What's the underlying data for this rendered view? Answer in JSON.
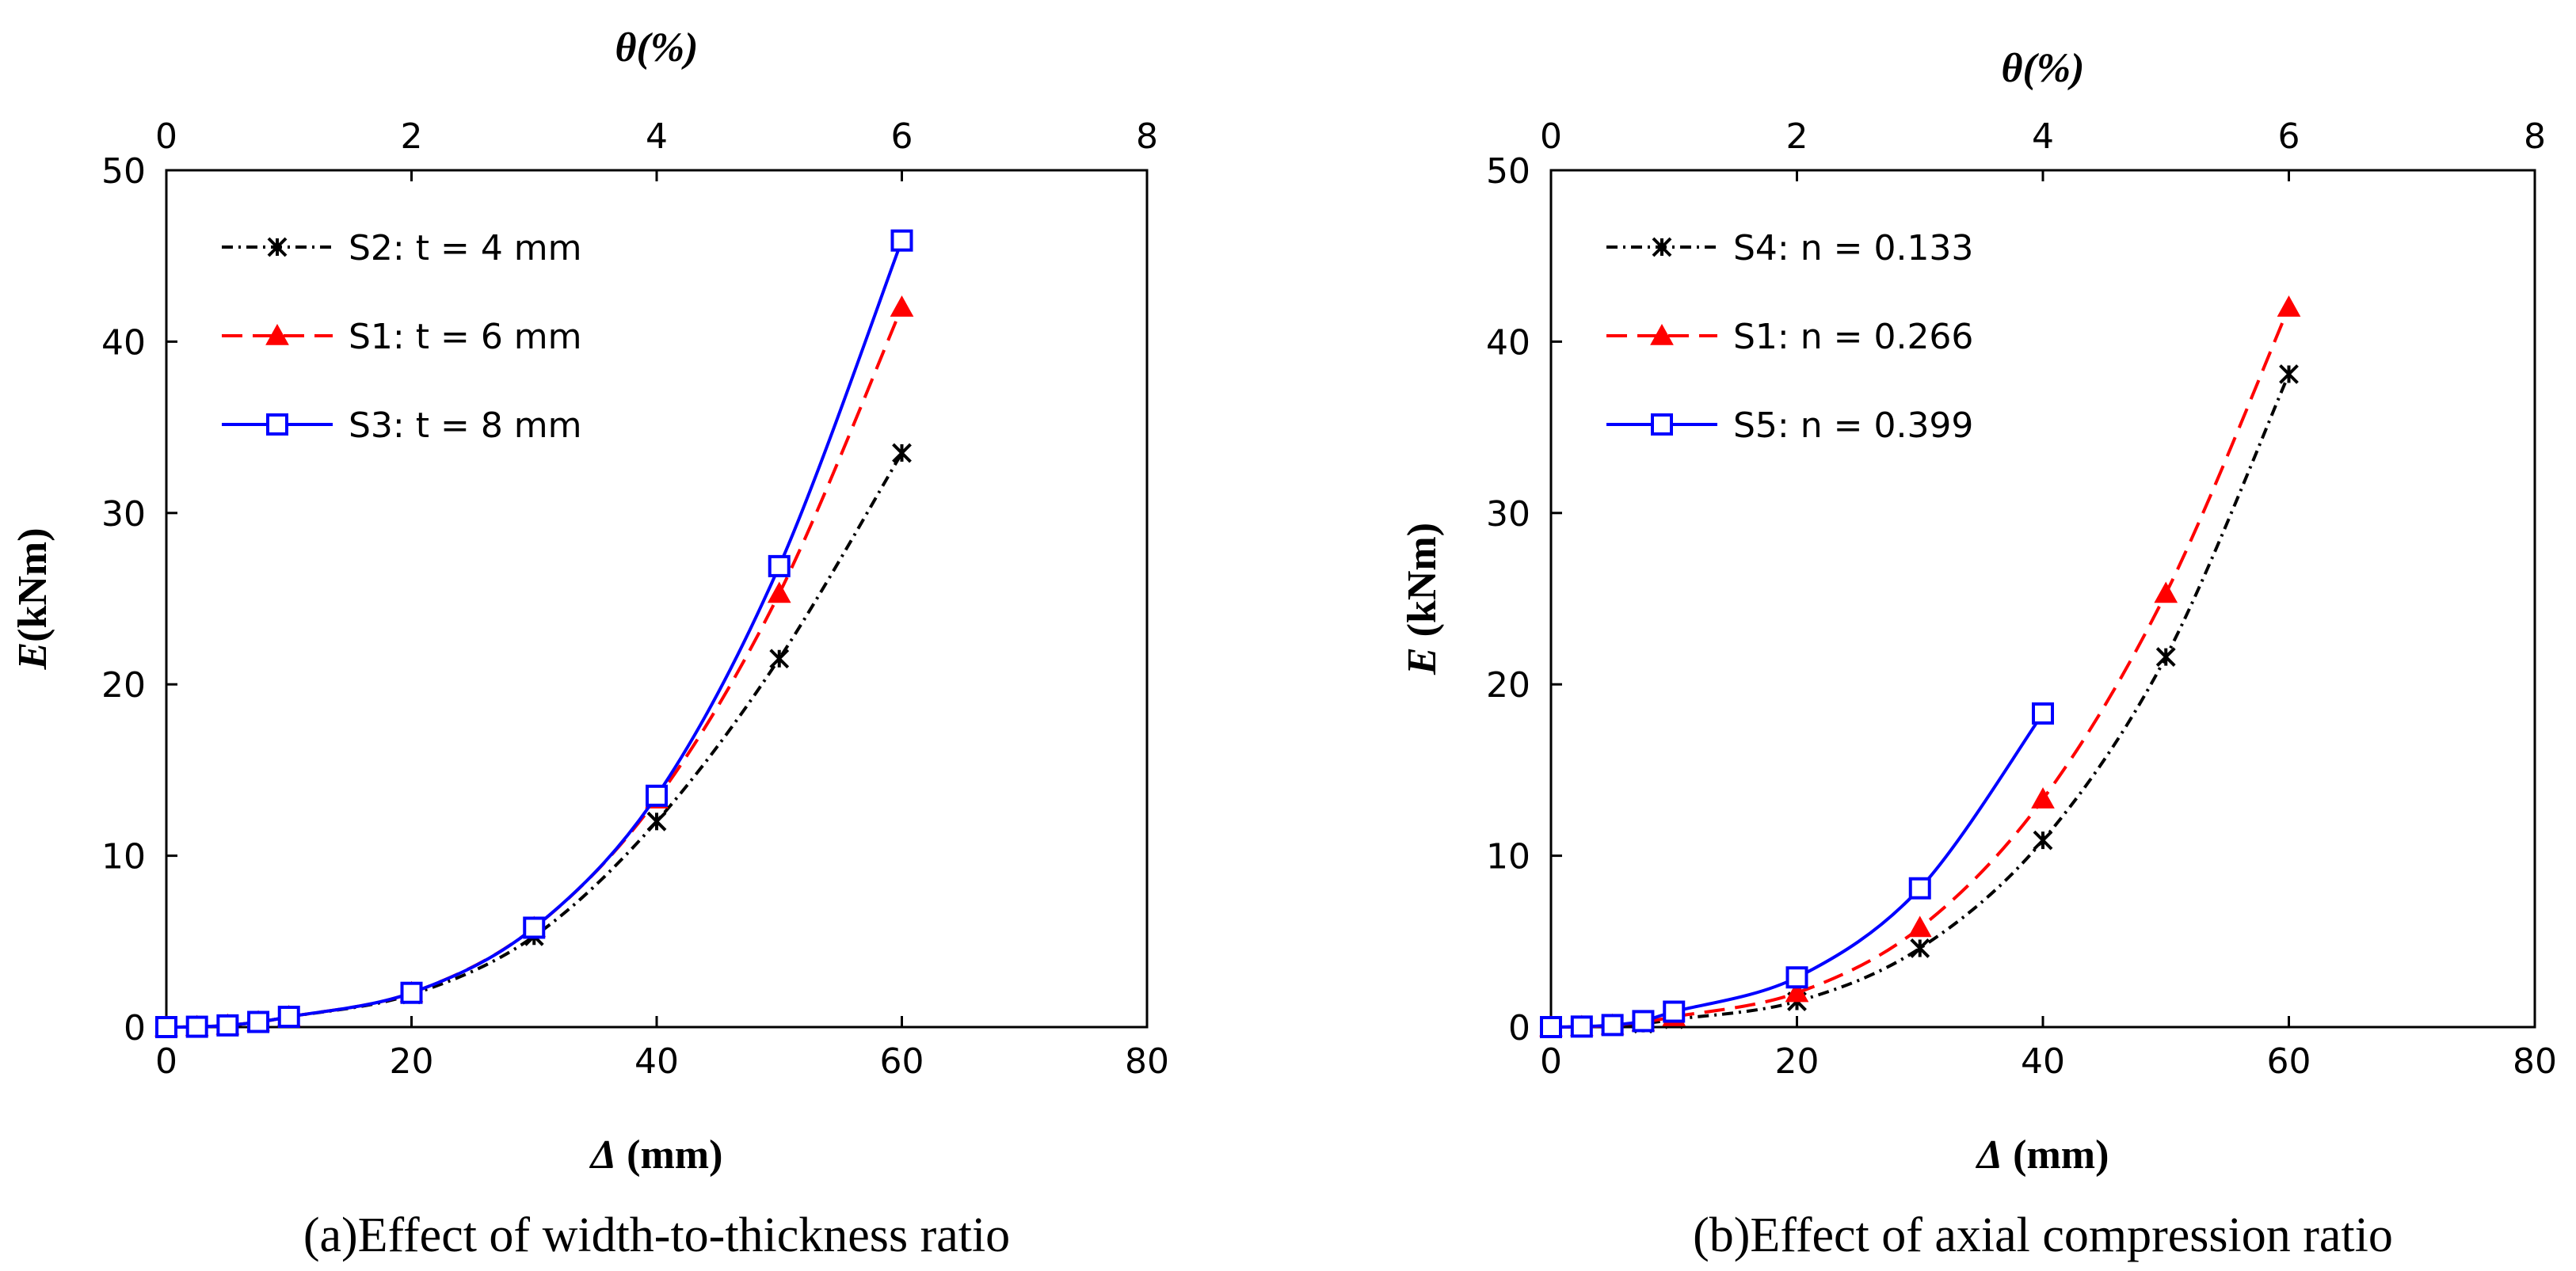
{
  "chart_data": [
    {
      "type": "line",
      "caption": "(a)Effect of width-to-thickness ratio",
      "xlabel_italic": "Δ",
      "xlabel_rest": " (mm)",
      "ylabel_italic": "E",
      "ylabel_rest": "(kNm)",
      "x2label": "θ(%)",
      "xlim": [
        0,
        80
      ],
      "ylim": [
        0,
        50
      ],
      "x2lim": [
        0,
        8
      ],
      "xticks": [
        0,
        20,
        40,
        60,
        80
      ],
      "yticks": [
        0,
        10,
        20,
        30,
        40,
        50
      ],
      "x2ticks": [
        0,
        2,
        4,
        6,
        8
      ],
      "legend_position": "top-left",
      "series": [
        {
          "name": "S2:  t = 4 mm",
          "style": "dashdot",
          "marker": "x",
          "color": "#000000",
          "x": [
            0,
            2.5,
            5,
            7.5,
            10,
            20,
            30,
            40,
            50,
            60
          ],
          "y": [
            0,
            0.02,
            0.1,
            0.3,
            0.6,
            1.9,
            5.3,
            12.0,
            21.5,
            33.5
          ]
        },
        {
          "name": "S1:  t = 6 mm",
          "style": "dashed",
          "marker": "triangle",
          "color": "#ff0000",
          "x": [
            0,
            2.5,
            5,
            7.5,
            10,
            20,
            30,
            40,
            50,
            60
          ],
          "y": [
            0,
            0.02,
            0.1,
            0.3,
            0.6,
            2.0,
            5.8,
            13.3,
            25.3,
            42.0
          ]
        },
        {
          "name": "S3:  t = 8 mm",
          "style": "solid",
          "marker": "square",
          "color": "#0000ff",
          "x": [
            0,
            2.5,
            5,
            7.5,
            10,
            20,
            30,
            40,
            50,
            60
          ],
          "y": [
            0,
            0.02,
            0.1,
            0.3,
            0.6,
            2.0,
            5.8,
            13.5,
            26.9,
            45.9
          ]
        }
      ]
    },
    {
      "type": "line",
      "caption": "(b)Effect of axial compression ratio",
      "xlabel_italic": "Δ",
      "xlabel_rest": " (mm)",
      "ylabel_italic": "E",
      "ylabel_rest": " (kNm)",
      "x2label": "θ(%)",
      "xlim": [
        0,
        80
      ],
      "ylim": [
        0,
        50
      ],
      "x2lim": [
        0,
        8
      ],
      "xticks": [
        0,
        20,
        40,
        60,
        80
      ],
      "yticks": [
        0,
        10,
        20,
        30,
        40,
        50
      ],
      "x2ticks": [
        0,
        2,
        4,
        6,
        8
      ],
      "legend_position": "top-left",
      "series": [
        {
          "name": "S4:  n = 0.133",
          "style": "dashdot",
          "marker": "x",
          "color": "#000000",
          "x": [
            0,
            2.5,
            5,
            7.5,
            10,
            20,
            30,
            40,
            50,
            60
          ],
          "y": [
            0,
            0.02,
            0.08,
            0.2,
            0.45,
            1.5,
            4.6,
            10.9,
            21.6,
            38.1
          ]
        },
        {
          "name": "S1:  n = 0.266",
          "style": "dashed",
          "marker": "triangle",
          "color": "#ff0000",
          "x": [
            0,
            2.5,
            5,
            7.5,
            10,
            20,
            30,
            40,
            50,
            60
          ],
          "y": [
            0,
            0.02,
            0.1,
            0.3,
            0.6,
            2.0,
            5.8,
            13.3,
            25.3,
            42.0
          ]
        },
        {
          "name": "S5:  n = 0.399",
          "style": "solid",
          "marker": "square",
          "color": "#0000ff",
          "x": [
            0,
            2.5,
            5,
            7.5,
            10,
            20,
            30,
            40
          ],
          "y": [
            0,
            0.03,
            0.12,
            0.35,
            0.9,
            2.9,
            8.1,
            18.3
          ]
        }
      ]
    }
  ]
}
